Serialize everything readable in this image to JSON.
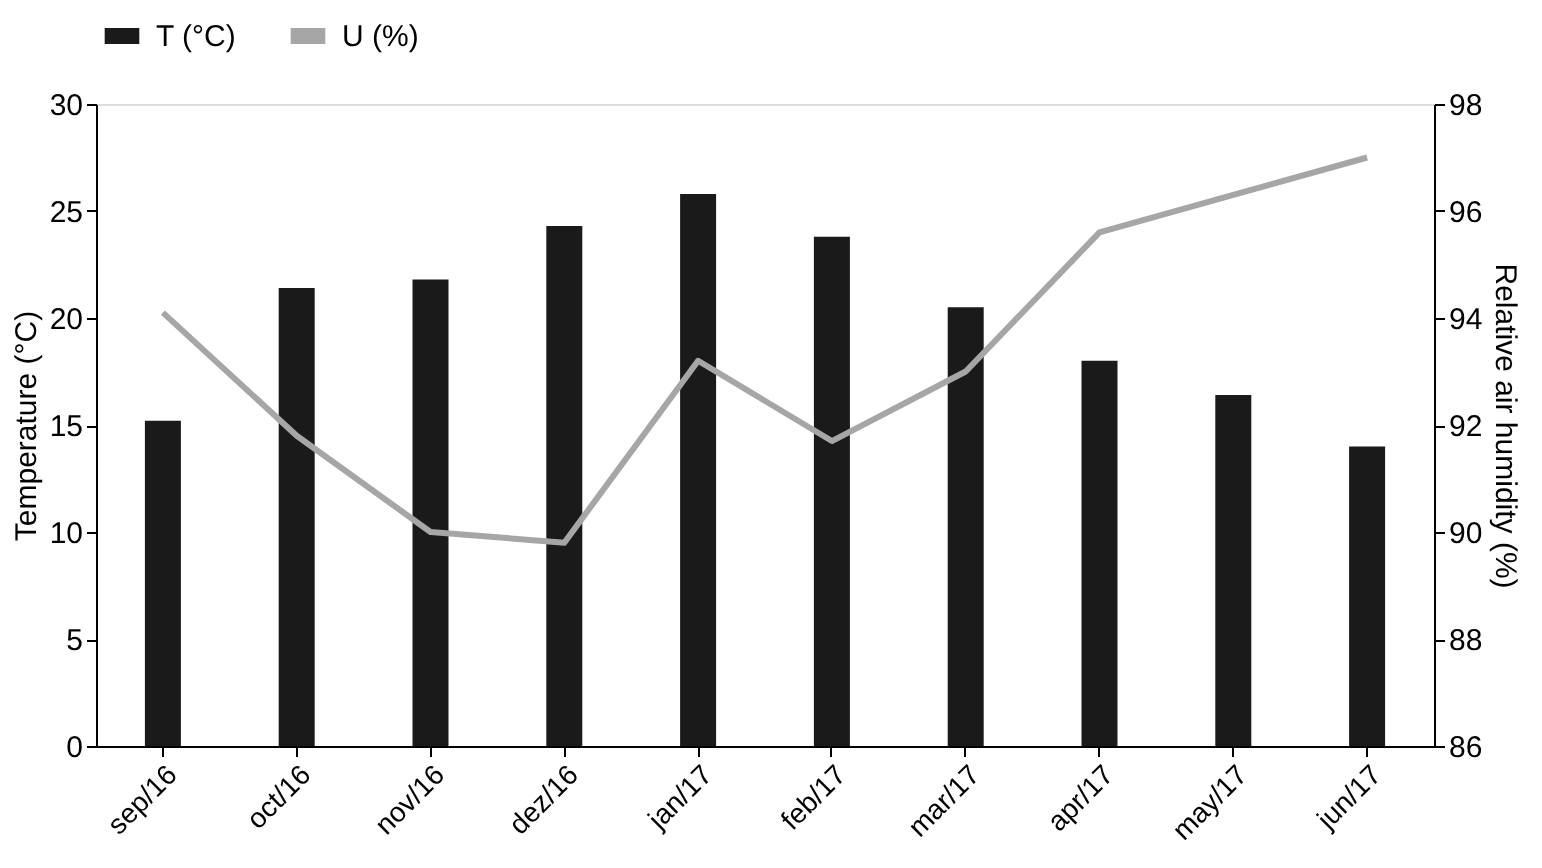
{
  "chart_data": {
    "type": "bar",
    "ylabel": "Temperature (°C)",
    "y2label": "Relative air humidity (%)",
    "categories": [
      "sep/16",
      "oct/16",
      "nov/16",
      "dez/16",
      "jan/17",
      "feb/17",
      "mar/17",
      "apr/17",
      "may/17",
      "jun/17"
    ],
    "series": [
      {
        "name": "T (°C)",
        "color": "#1a1a1a",
        "values": [
          15.2,
          21.4,
          21.8,
          24.3,
          25.8,
          23.8,
          20.5,
          18.0,
          16.4,
          14.0
        ]
      },
      {
        "name": "U (%)",
        "type": "line",
        "axis": "y2",
        "color": "#a6a6a6",
        "values": [
          94.1,
          91.8,
          90.0,
          89.8,
          93.2,
          91.7,
          93.0,
          95.6,
          96.3,
          97.0
        ]
      }
    ],
    "ylim": [
      0,
      30
    ],
    "yticks": [
      0,
      5,
      10,
      15,
      20,
      25,
      30
    ],
    "y2lim": [
      86,
      98
    ],
    "y2ticks": [
      86,
      88,
      90,
      92,
      94,
      96,
      98
    ],
    "legend": "top",
    "grid": false,
    "marker": "none",
    "line_style": "solid"
  }
}
